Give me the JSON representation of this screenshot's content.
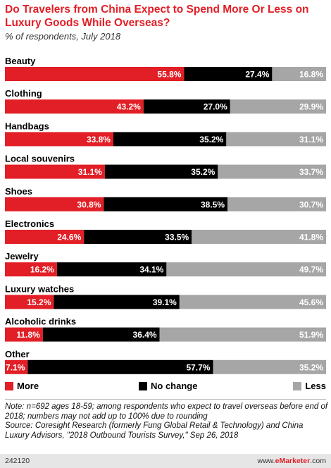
{
  "chart_data": {
    "type": "bar",
    "orientation": "horizontal",
    "stacked": true,
    "title": "Do Travelers from China Expect to Spend More Or Less on Luxury Goods While Overseas?",
    "subtitle": "% of respondents, July 2018",
    "categories": [
      "Beauty",
      "Clothing",
      "Handbags",
      "Local souvenirs",
      "Shoes",
      "Electronics",
      "Jewelry",
      "Luxury watches",
      "Alcoholic drinks",
      "Other"
    ],
    "series": [
      {
        "name": "More",
        "color": "#e21f26",
        "values": [
          55.8,
          43.2,
          33.8,
          31.1,
          30.8,
          24.6,
          16.2,
          15.2,
          11.8,
          7.1
        ]
      },
      {
        "name": "No change",
        "color": "#000000",
        "values": [
          27.4,
          27.0,
          35.2,
          35.2,
          38.5,
          33.5,
          34.1,
          39.1,
          36.4,
          57.7
        ]
      },
      {
        "name": "Less",
        "color": "#a6a6a6",
        "values": [
          16.8,
          29.9,
          31.1,
          33.7,
          30.7,
          41.8,
          49.7,
          45.6,
          51.9,
          35.2
        ]
      }
    ],
    "value_suffix": "%",
    "legend_position": "bottom",
    "grid": false
  },
  "note": "Note: n=692 ages 18-59; among respondents who expect to travel overseas before end of 2018; numbers may not add up to 100% due to rounding",
  "source": "Source: Coresight Research (formerly Fung Global Retail & Technology) and China Luxury Advisors, \"2018 Outbound Tourists Survey,\" Sep 26, 2018",
  "footer": {
    "chart_id": "242120",
    "copyright_prefix": "www.",
    "copyright_brand": "eMarketer",
    "copyright_suffix": ".com"
  }
}
